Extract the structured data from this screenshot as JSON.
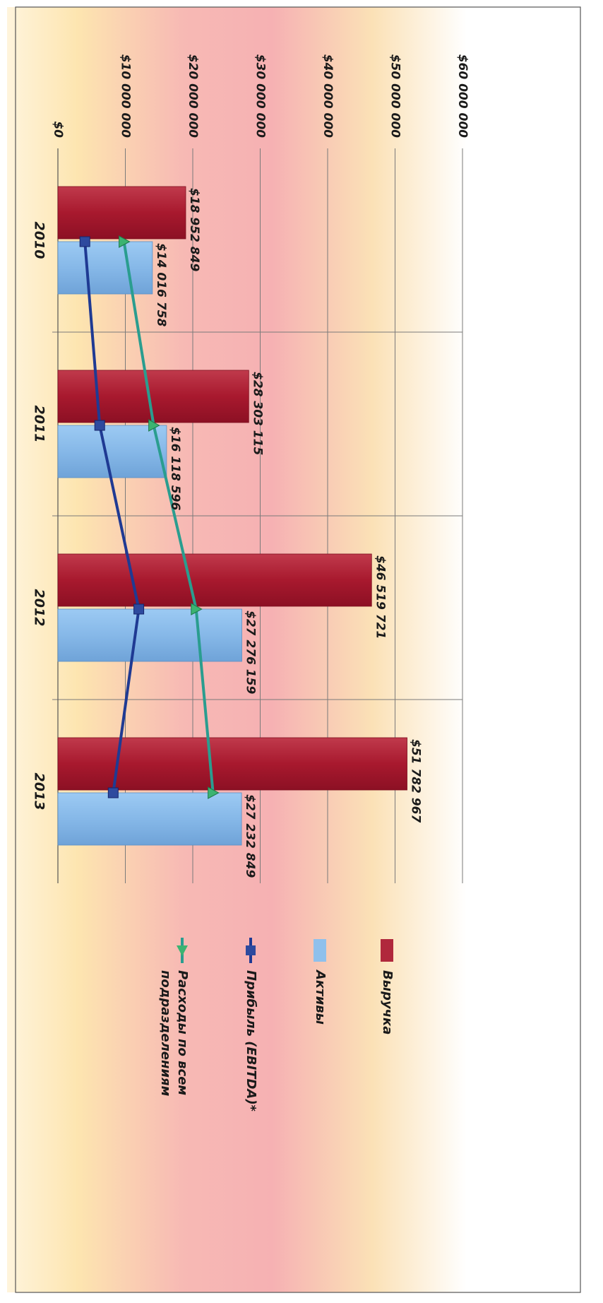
{
  "chart_data": {
    "type": "bar",
    "orientation": "rotated-90-clockwise",
    "categories": [
      "2010",
      "2011",
      "2012",
      "2013"
    ],
    "value_axis": {
      "min": 0,
      "max": 60000000,
      "step": 10000000,
      "tick_labels": [
        "$0",
        "$10 000 000",
        "$20 000 000",
        "$30 000 000",
        "$40 000 000",
        "$50 000 000",
        "$60 000 000"
      ]
    },
    "grid": true,
    "legend_position": "right",
    "series": [
      {
        "name": "Выручка",
        "kind": "bar",
        "color": "#b0283c",
        "values": [
          18952849,
          28303115,
          46519721,
          51782967
        ],
        "labels": [
          "$18 952 849",
          "$28 303 115",
          "$46 519 721",
          "$51 782 967"
        ]
      },
      {
        "name": "Активы",
        "kind": "bar",
        "color": "#8fc0ec",
        "values": [
          14016758,
          16118596,
          27276159,
          27232849
        ],
        "labels": [
          "$14 016 758",
          "$16 118 596",
          "$27 276 159",
          "$27 232 849"
        ]
      },
      {
        "name": "Прибыль (EBITDA)*",
        "kind": "line",
        "marker": "square",
        "color": "#1f3a93",
        "values": [
          4000000,
          6200000,
          12000000,
          8200000
        ]
      },
      {
        "name": "Расходы по всем подразделениям",
        "kind": "line",
        "marker": "triangle",
        "color": "#2a9d8f",
        "values": [
          9800000,
          14200000,
          20500000,
          23000000
        ]
      }
    ]
  }
}
